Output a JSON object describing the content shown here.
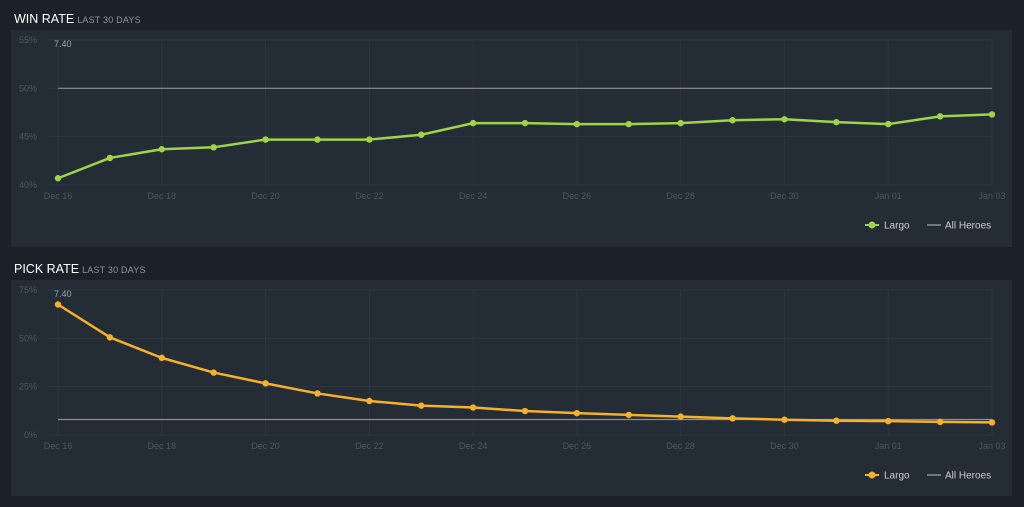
{
  "chart_data": [
    {
      "type": "line",
      "title": "WIN RATE",
      "subtitle": "LAST 30 DAYS",
      "patch_marker": "7.40",
      "categories": [
        "Dec 16",
        "Dec 17",
        "Dec 18",
        "Dec 19",
        "Dec 20",
        "Dec 21",
        "Dec 22",
        "Dec 23",
        "Dec 24",
        "Dec 25",
        "Dec 26",
        "Dec 27",
        "Dec 28",
        "Dec 29",
        "Dec 30",
        "Dec 31",
        "Jan 01",
        "Jan 02",
        "Jan 03"
      ],
      "tick_labels": [
        "Dec 16",
        "Dec 18",
        "Dec 20",
        "Dec 22",
        "Dec 24",
        "Dec 26",
        "Dec 28",
        "Dec 30",
        "Jan 01",
        "Jan 03"
      ],
      "yticks": [
        "55%",
        "50%",
        "45%",
        "40%"
      ],
      "ylim": [
        40,
        55
      ],
      "series": [
        {
          "name": "Largo",
          "color": "#a0d448",
          "values": [
            40.7,
            42.8,
            43.7,
            43.9,
            44.7,
            44.7,
            44.7,
            45.2,
            46.4,
            46.4,
            46.3,
            46.3,
            46.4,
            46.7,
            46.8,
            46.5,
            46.3,
            47.1,
            47.3
          ]
        },
        {
          "name": "All Heroes",
          "color": "#8a9198",
          "values": [
            50,
            50,
            50,
            50,
            50,
            50,
            50,
            50,
            50,
            50,
            50,
            50,
            50,
            50,
            50,
            50,
            50,
            50,
            50
          ]
        }
      ],
      "legend": [
        "Largo",
        "All Heroes"
      ]
    },
    {
      "type": "line",
      "title": "PICK RATE",
      "subtitle": "LAST 30 DAYS",
      "patch_marker": "7.40",
      "categories": [
        "Dec 16",
        "Dec 17",
        "Dec 18",
        "Dec 19",
        "Dec 20",
        "Dec 21",
        "Dec 22",
        "Dec 23",
        "Dec 24",
        "Dec 25",
        "Dec 26",
        "Dec 27",
        "Dec 28",
        "Dec 29",
        "Dec 30",
        "Dec 31",
        "Jan 01",
        "Jan 02",
        "Jan 03"
      ],
      "tick_labels": [
        "Dec 16",
        "Dec 18",
        "Dec 20",
        "Dec 22",
        "Dec 24",
        "Dec 26",
        "Dec 28",
        "Dec 30",
        "Jan 01",
        "Jan 03"
      ],
      "yticks": [
        "75%",
        "50%",
        "25%",
        "0%"
      ],
      "ylim": [
        0,
        75
      ],
      "series": [
        {
          "name": "Largo",
          "color": "#f5b129",
          "values": [
            67.5,
            50.5,
            39.9,
            32.3,
            26.7,
            21.5,
            17.6,
            15.2,
            14.2,
            12.4,
            11.3,
            10.4,
            9.5,
            8.6,
            7.9,
            7.4,
            7.2,
            6.8,
            6.5
          ]
        },
        {
          "name": "All Heroes",
          "color": "#8a9198",
          "values": [
            8,
            8,
            8,
            8,
            8,
            8,
            8,
            8,
            8,
            8,
            8,
            8,
            8,
            8,
            8,
            8,
            8,
            8,
            8
          ]
        }
      ],
      "legend": [
        "Largo",
        "All Heroes"
      ]
    }
  ]
}
